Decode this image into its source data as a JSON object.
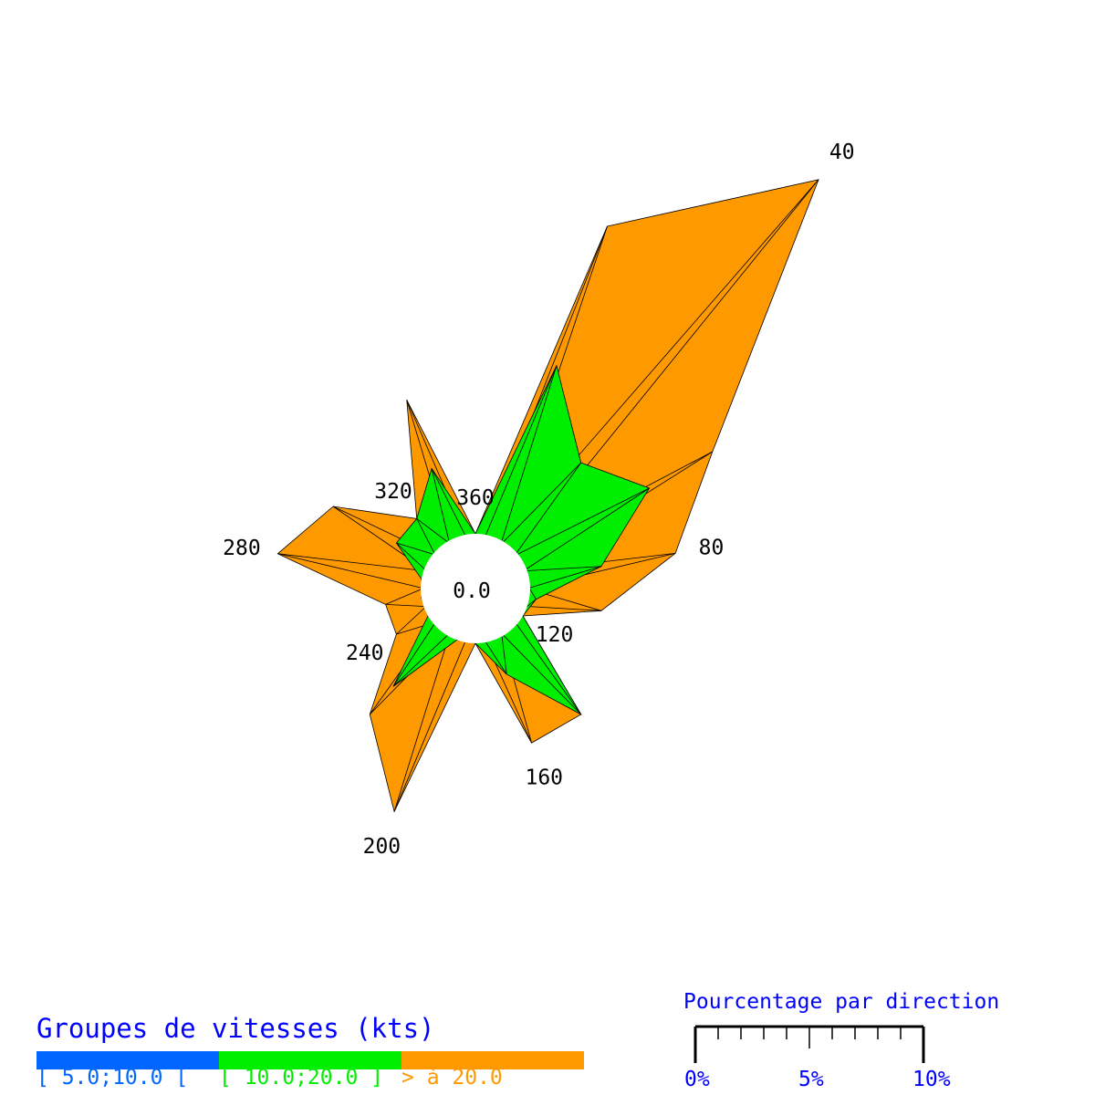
{
  "chart_data": {
    "type": "wind-rose",
    "calm_label": "0.0",
    "directions": [
      20,
      40,
      60,
      80,
      100,
      120,
      140,
      160,
      180,
      200,
      220,
      240,
      260,
      280,
      300,
      320,
      340,
      360
    ],
    "direction_labels": [
      "40",
      "80",
      "120",
      "160",
      "200",
      "240",
      "280",
      "320",
      "360"
    ],
    "series": [
      {
        "name": "[ 5.0;10.0 [",
        "color": "#0066ff",
        "values": [
          0,
          0,
          0,
          0,
          0,
          0,
          0,
          0,
          0,
          0,
          0,
          0,
          0,
          0,
          0,
          0,
          0,
          0
        ]
      },
      {
        "name": "[ 10.0;20.0 ]",
        "color": "#00ee00",
        "values": [
          8.0,
          4.8,
          6.4,
          3.2,
          0.3,
          0,
          4.8,
          1.6,
          0,
          0,
          3.2,
          0,
          0,
          0,
          1.6,
          1.6,
          3.2,
          0
        ]
      },
      {
        "name": "> à 20.0",
        "color": "#ff9900",
        "values": [
          6.5,
          16.2,
          3.2,
          3.3,
          2.9,
          0,
          0,
          3.2,
          0,
          8.0,
          1.6,
          1.6,
          1.6,
          6.4,
          3.2,
          0,
          3.2,
          0
        ]
      }
    ],
    "unit": "%"
  },
  "legend": {
    "title": "Groupes de vitesses (kts)",
    "items": [
      {
        "label": "[ 5.0;10.0 [",
        "color": "#0066ff"
      },
      {
        "label": "[ 10.0;20.0 ]",
        "color": "#00ee00"
      },
      {
        "label": "> à 20.0",
        "color": "#ff9900"
      }
    ]
  },
  "scale": {
    "title": "Pourcentage par direction",
    "max_percent": 10,
    "ticks": [
      "0%",
      "5%",
      "10%"
    ]
  }
}
